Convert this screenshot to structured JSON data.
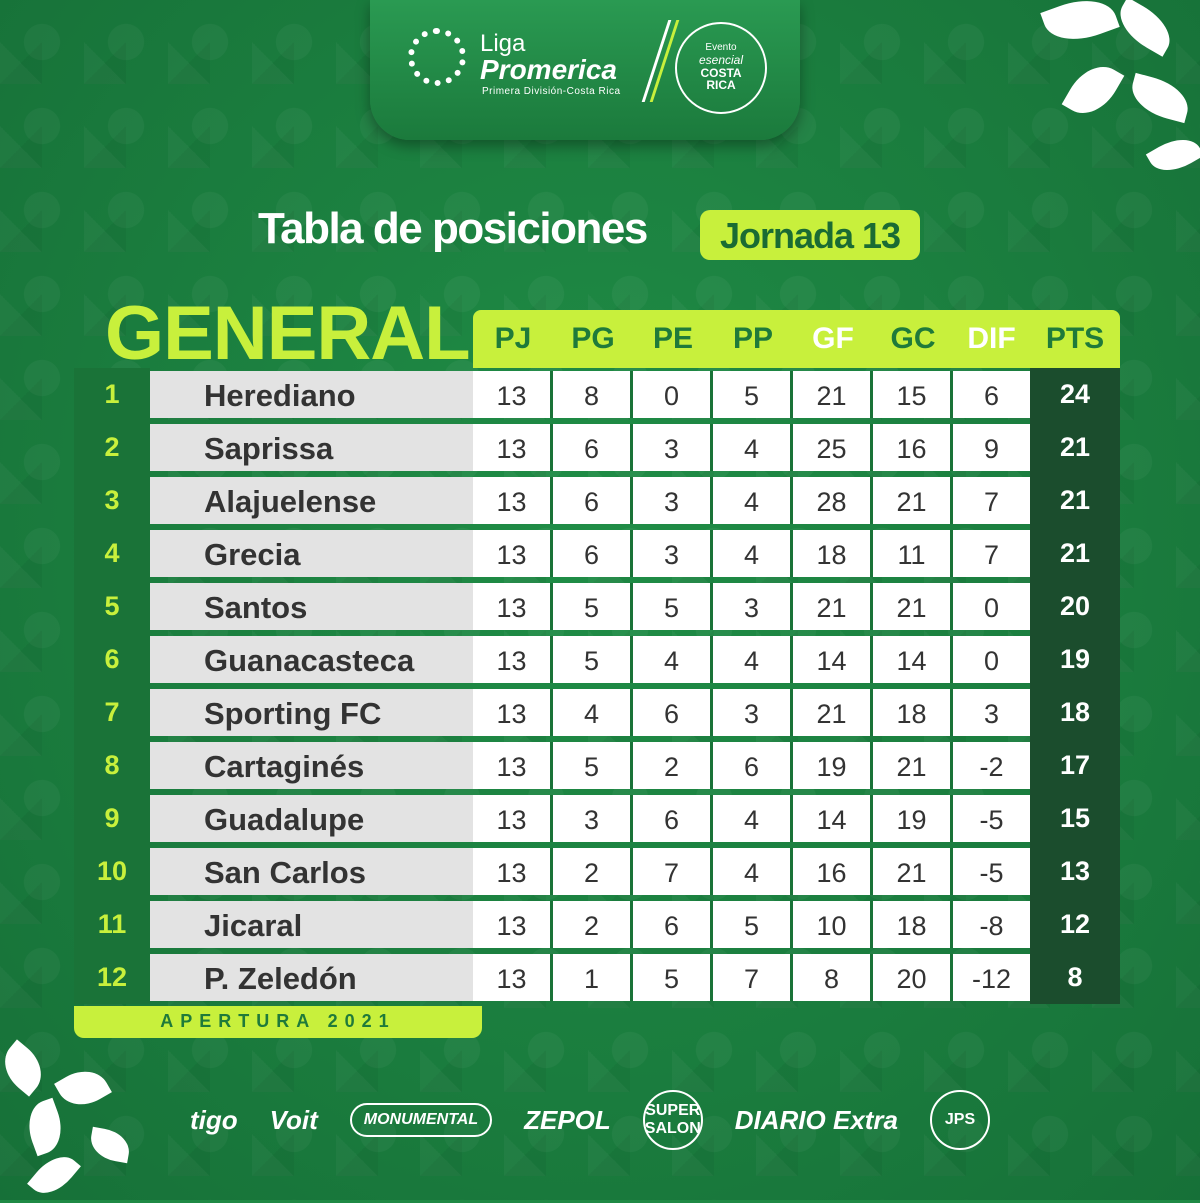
{
  "header": {
    "liga_word": "Liga",
    "liga_brand": "Promerica",
    "liga_sub": "Primera División-Costa Rica",
    "evento_line1": "Evento",
    "evento_line2": "esencial",
    "evento_line3": "COSTA",
    "evento_line4": "RICA"
  },
  "title": "Tabla de posiciones",
  "jornada": "Jornada 13",
  "table": {
    "label": "GENERAL",
    "columns": [
      "PJ",
      "PG",
      "PE",
      "PP",
      "GF",
      "GC",
      "DIF",
      "PTS"
    ],
    "rows": [
      {
        "pos": "1",
        "team": "Herediano",
        "pj": "13",
        "pg": "8",
        "pe": "0",
        "pp": "5",
        "gf": "21",
        "gc": "15",
        "dif": "6",
        "pts": "24"
      },
      {
        "pos": "2",
        "team": "Saprissa",
        "pj": "13",
        "pg": "6",
        "pe": "3",
        "pp": "4",
        "gf": "25",
        "gc": "16",
        "dif": "9",
        "pts": "21"
      },
      {
        "pos": "3",
        "team": "Alajuelense",
        "pj": "13",
        "pg": "6",
        "pe": "3",
        "pp": "4",
        "gf": "28",
        "gc": "21",
        "dif": "7",
        "pts": "21"
      },
      {
        "pos": "4",
        "team": "Grecia",
        "pj": "13",
        "pg": "6",
        "pe": "3",
        "pp": "4",
        "gf": "18",
        "gc": "11",
        "dif": "7",
        "pts": "21"
      },
      {
        "pos": "5",
        "team": "Santos",
        "pj": "13",
        "pg": "5",
        "pe": "5",
        "pp": "3",
        "gf": "21",
        "gc": "21",
        "dif": "0",
        "pts": "20"
      },
      {
        "pos": "6",
        "team": "Guanacasteca",
        "pj": "13",
        "pg": "5",
        "pe": "4",
        "pp": "4",
        "gf": "14",
        "gc": "14",
        "dif": "0",
        "pts": "19"
      },
      {
        "pos": "7",
        "team": "Sporting FC",
        "pj": "13",
        "pg": "4",
        "pe": "6",
        "pp": "3",
        "gf": "21",
        "gc": "18",
        "dif": "3",
        "pts": "18"
      },
      {
        "pos": "8",
        "team": "Cartaginés",
        "pj": "13",
        "pg": "5",
        "pe": "2",
        "pp": "6",
        "gf": "19",
        "gc": "21",
        "dif": "-2",
        "pts": "17"
      },
      {
        "pos": "9",
        "team": "Guadalupe",
        "pj": "13",
        "pg": "3",
        "pe": "6",
        "pp": "4",
        "gf": "14",
        "gc": "19",
        "dif": "-5",
        "pts": "15"
      },
      {
        "pos": "10",
        "team": "San Carlos",
        "pj": "13",
        "pg": "2",
        "pe": "7",
        "pp": "4",
        "gf": "16",
        "gc": "21",
        "dif": "-5",
        "pts": "13"
      },
      {
        "pos": "11",
        "team": "Jicaral",
        "pj": "13",
        "pg": "2",
        "pe": "6",
        "pp": "5",
        "gf": "10",
        "gc": "18",
        "dif": "-8",
        "pts": "12"
      },
      {
        "pos": "12",
        "team": "P. Zeledón",
        "pj": "13",
        "pg": "1",
        "pe": "5",
        "pp": "7",
        "gf": "8",
        "gc": "20",
        "dif": "-12",
        "pts": "8"
      }
    ]
  },
  "apertura": "APERTURA 2021",
  "sponsors": [
    "tigo",
    "Voit",
    "MONUMENTAL",
    "ZEPOL",
    "SUPER SALON",
    "DIARIO Extra",
    "JPS"
  ],
  "colors": {
    "accent": "#c8f03c",
    "green": "#1d8743",
    "dark": "#1b4d2d"
  }
}
